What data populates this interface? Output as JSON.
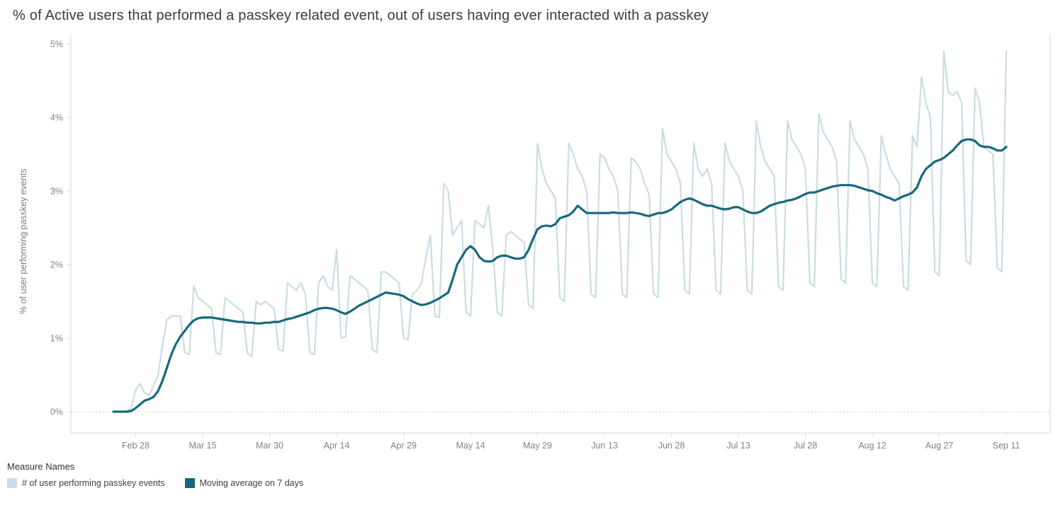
{
  "page": {
    "title": "% of Active users that performed a passkey related event, out of users having ever interacted with a passkey"
  },
  "legend": {
    "title": "Measure Names",
    "items": [
      {
        "label": "# of user performing passkey events",
        "color": "#c9dde3"
      },
      {
        "label": "Moving average on 7 days",
        "color": "#16697c"
      }
    ]
  },
  "chart_data": {
    "type": "line",
    "title": "% of Active users that performed a passkey related event, out of users having ever interacted with a passkey",
    "xlabel": "",
    "ylabel": "% of user performing passkey events",
    "ylim": [
      0,
      5
    ],
    "grid": false,
    "zero_line_dotted": true,
    "legend_position": "bottom-left",
    "x_unit": "day-index starting Feb 23",
    "x_range_days": [
      0,
      210
    ],
    "y_ticks": [
      {
        "v": 0,
        "label": "0%"
      },
      {
        "v": 1,
        "label": "1%"
      },
      {
        "v": 2,
        "label": "2%"
      },
      {
        "v": 3,
        "label": "3%"
      },
      {
        "v": 4,
        "label": "4%"
      },
      {
        "v": 5,
        "label": "5%"
      }
    ],
    "x_ticks": [
      {
        "day": 5,
        "label": "Feb 28"
      },
      {
        "day": 20,
        "label": "Mar 15"
      },
      {
        "day": 35,
        "label": "Mar 30"
      },
      {
        "day": 50,
        "label": "Apr 14"
      },
      {
        "day": 65,
        "label": "Apr 29"
      },
      {
        "day": 80,
        "label": "May 14"
      },
      {
        "day": 95,
        "label": "May 29"
      },
      {
        "day": 110,
        "label": "Jun 13"
      },
      {
        "day": 125,
        "label": "Jun 28"
      },
      {
        "day": 140,
        "label": "Jul 13"
      },
      {
        "day": 155,
        "label": "Jul 28"
      },
      {
        "day": 170,
        "label": "Aug 12"
      },
      {
        "day": 185,
        "label": "Aug 27"
      },
      {
        "day": 200,
        "label": "Sep 11"
      }
    ],
    "series": [
      {
        "name": "# of user performing passkey events",
        "color": "#c9dde3",
        "width": 2.2,
        "values": [
          0,
          0,
          0,
          0.01,
          0.05,
          0.3,
          0.38,
          0.25,
          0.22,
          0.35,
          0.5,
          0.9,
          1.25,
          1.3,
          1.3,
          1.3,
          0.8,
          0.78,
          1.7,
          1.55,
          1.5,
          1.45,
          1.4,
          0.8,
          0.78,
          1.55,
          1.5,
          1.45,
          1.4,
          1.35,
          0.8,
          0.75,
          1.5,
          1.45,
          1.5,
          1.45,
          1.4,
          0.85,
          0.82,
          1.75,
          1.7,
          1.65,
          1.75,
          1.6,
          0.8,
          0.78,
          1.75,
          1.85,
          1.7,
          1.65,
          2.2,
          1,
          1.02,
          1.85,
          1.8,
          1.75,
          1.7,
          1.65,
          0.85,
          0.8,
          1.9,
          1.9,
          1.85,
          1.8,
          1.75,
          1,
          0.98,
          1.6,
          1.65,
          1.75,
          2.1,
          2.4,
          1.3,
          1.28,
          3.1,
          3,
          2.4,
          2.5,
          2.6,
          1.35,
          1.3,
          2.6,
          2.55,
          2.5,
          2.8,
          2.2,
          1.35,
          1.3,
          2.4,
          2.45,
          2.4,
          2.35,
          2.3,
          1.45,
          1.4,
          3.65,
          3.3,
          3.1,
          3,
          2.9,
          1.55,
          1.5,
          3.65,
          3.5,
          3.3,
          3.2,
          3,
          1.6,
          1.55,
          3.5,
          3.45,
          3.3,
          3.2,
          3,
          1.6,
          1.55,
          3.45,
          3.4,
          3.3,
          3.1,
          2.95,
          1.6,
          1.55,
          3.85,
          3.5,
          3.4,
          3.3,
          3.1,
          1.65,
          1.6,
          3.65,
          3.3,
          3.2,
          3.3,
          3.1,
          1.65,
          1.6,
          3.65,
          3.4,
          3.3,
          3.2,
          3,
          1.65,
          1.6,
          3.95,
          3.6,
          3.4,
          3.3,
          3.2,
          1.7,
          1.65,
          3.95,
          3.7,
          3.6,
          3.5,
          3.3,
          1.75,
          1.7,
          4.05,
          3.8,
          3.7,
          3.6,
          3.4,
          1.8,
          1.75,
          3.95,
          3.7,
          3.6,
          3.5,
          3.3,
          1.75,
          1.7,
          3.75,
          3.5,
          3.3,
          3.2,
          3.1,
          1.7,
          1.65,
          3.75,
          3.6,
          4.55,
          4.2,
          4,
          1.9,
          1.85,
          4.9,
          4.35,
          4.3,
          4.35,
          4.2,
          2.05,
          2,
          4.4,
          4.2,
          3.6,
          3.55,
          3.5,
          1.95,
          1.9,
          4.9
        ]
      },
      {
        "name": "Moving average on 7 days",
        "color": "#16697c",
        "width": 3.2,
        "values": [
          0,
          0,
          0,
          0,
          0.01,
          0.05,
          0.1,
          0.15,
          0.17,
          0.2,
          0.28,
          0.42,
          0.6,
          0.78,
          0.92,
          1.02,
          1.1,
          1.18,
          1.24,
          1.27,
          1.28,
          1.28,
          1.28,
          1.27,
          1.26,
          1.25,
          1.24,
          1.23,
          1.22,
          1.22,
          1.21,
          1.21,
          1.2,
          1.2,
          1.21,
          1.21,
          1.22,
          1.22,
          1.24,
          1.26,
          1.27,
          1.29,
          1.31,
          1.33,
          1.35,
          1.38,
          1.4,
          1.41,
          1.41,
          1.4,
          1.38,
          1.35,
          1.33,
          1.36,
          1.4,
          1.44,
          1.47,
          1.5,
          1.53,
          1.56,
          1.59,
          1.62,
          1.61,
          1.6,
          1.59,
          1.57,
          1.53,
          1.5,
          1.47,
          1.45,
          1.46,
          1.48,
          1.51,
          1.54,
          1.58,
          1.62,
          1.8,
          2,
          2.1,
          2.2,
          2.25,
          2.2,
          2.1,
          2.05,
          2.04,
          2.05,
          2.1,
          2.12,
          2.12,
          2.1,
          2.08,
          2.08,
          2.1,
          2.2,
          2.35,
          2.48,
          2.52,
          2.53,
          2.52,
          2.55,
          2.63,
          2.65,
          2.67,
          2.72,
          2.8,
          2.75,
          2.7,
          2.7,
          2.7,
          2.7,
          2.7,
          2.7,
          2.71,
          2.7,
          2.7,
          2.7,
          2.71,
          2.7,
          2.69,
          2.67,
          2.66,
          2.68,
          2.7,
          2.7,
          2.72,
          2.75,
          2.8,
          2.85,
          2.88,
          2.9,
          2.88,
          2.85,
          2.82,
          2.8,
          2.8,
          2.78,
          2.76,
          2.75,
          2.76,
          2.78,
          2.78,
          2.75,
          2.72,
          2.7,
          2.7,
          2.72,
          2.76,
          2.8,
          2.82,
          2.84,
          2.85,
          2.87,
          2.88,
          2.9,
          2.93,
          2.96,
          2.98,
          2.98,
          3,
          3.02,
          3.04,
          3.06,
          3.07,
          3.08,
          3.08,
          3.08,
          3.07,
          3.05,
          3.03,
          3.01,
          3,
          2.97,
          2.95,
          2.92,
          2.9,
          2.87,
          2.9,
          2.93,
          2.95,
          2.98,
          3.05,
          3.2,
          3.3,
          3.35,
          3.4,
          3.42,
          3.45,
          3.5,
          3.55,
          3.62,
          3.68,
          3.7,
          3.7,
          3.68,
          3.62,
          3.6,
          3.6,
          3.58,
          3.55,
          3.55,
          3.6
        ]
      }
    ]
  }
}
